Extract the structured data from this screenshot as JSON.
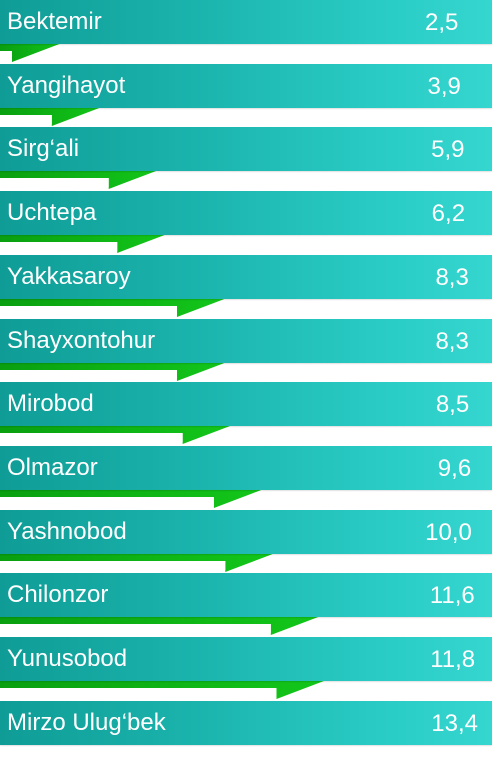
{
  "chart_data": {
    "type": "bar",
    "categories": [
      "Bektemir",
      "Yangihayot",
      "Sirg‘ali",
      "Uchtepa",
      "Yakkasaroy",
      "Shayxontohur",
      "Mirobod",
      "Olmazor",
      "Yashnobod",
      "Chilonzor",
      "Yunusobod",
      "Mirzo Ulug‘bek"
    ],
    "values": [
      2.5,
      3.9,
      5.9,
      6.2,
      8.3,
      8.3,
      8.5,
      9.6,
      10.0,
      11.6,
      11.8,
      13.4
    ],
    "value_labels": [
      "2,5",
      "3,9",
      "5,9",
      "6,2",
      "8,3",
      "8,3",
      "8,5",
      "9,6",
      "10,0",
      "11,6",
      "11,8",
      "13,4"
    ],
    "colors": {
      "band": "#1bb4ad",
      "band_light": "#35d6cf",
      "arrow": "#13c81a",
      "arrow_dark": "#0a9f10",
      "text": "#ffffff"
    }
  }
}
